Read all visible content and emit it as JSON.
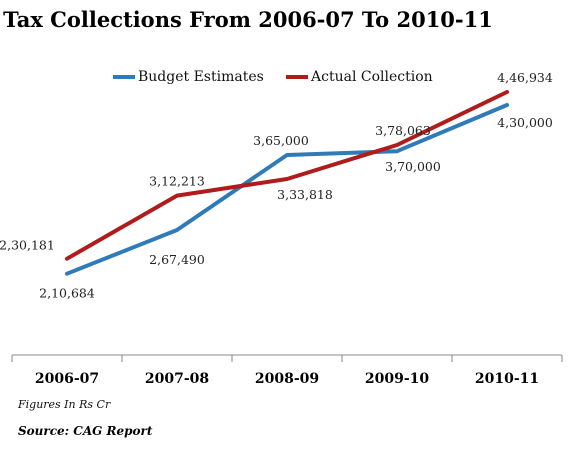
{
  "chart_data": {
    "type": "line",
    "title": "Tax Collections From 2006-07 To 2010-11",
    "categories": [
      "2006-07",
      "2007-08",
      "2008-09",
      "2009-10",
      "2010-11"
    ],
    "series": [
      {
        "name": "Budget Estimates",
        "color": "#2f7ab8",
        "values": [
          210684,
          267490,
          365000,
          370000,
          430000
        ],
        "labels": [
          "2,10,684",
          "2,67,490",
          "3,65,000",
          "3,70,000",
          "4,30,000"
        ]
      },
      {
        "name": "Actual Collection",
        "color": "#b01c1c",
        "values": [
          230181,
          312213,
          333818,
          378063,
          446934
        ],
        "labels": [
          "2,30,181",
          "3,12,213",
          "3,33,818",
          "3,78,063",
          "4,46,934"
        ]
      }
    ],
    "ylim": [
      105000,
      495000
    ],
    "grid": false,
    "legend": "top",
    "note": "Figures In Rs Cr",
    "source": "Source: CAG Report"
  }
}
